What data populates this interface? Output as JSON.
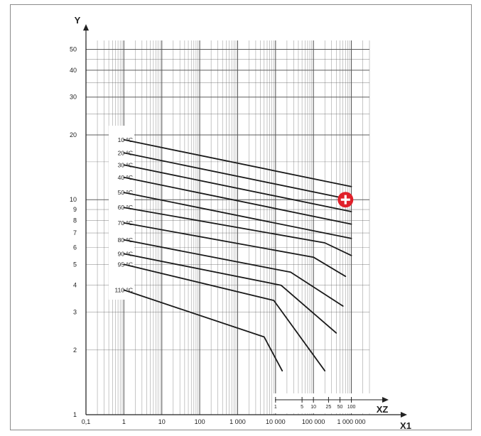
{
  "chart_data": {
    "type": "line",
    "title": "",
    "xlabel": "X1",
    "ylabel": "Y",
    "x2label": "XZ",
    "x_scale": "log",
    "y_scale": "log",
    "xlim": [
      0.1,
      3000000
    ],
    "ylim": [
      1,
      55
    ],
    "grid": true,
    "legend": "none",
    "x_ticks": [
      {
        "value": 0.1,
        "label": "0,1"
      },
      {
        "value": 1,
        "label": "1"
      },
      {
        "value": 10,
        "label": "10"
      },
      {
        "value": 100,
        "label": "100"
      },
      {
        "value": 1000,
        "label": "1 000"
      },
      {
        "value": 10000,
        "label": "10 000"
      },
      {
        "value": 100000,
        "label": "100 000"
      },
      {
        "value": 1000000,
        "label": "1 000 000"
      }
    ],
    "y_ticks": [
      {
        "value": 1,
        "label": "1"
      },
      {
        "value": 2,
        "label": "2"
      },
      {
        "value": 3,
        "label": "3"
      },
      {
        "value": 4,
        "label": "4"
      },
      {
        "value": 5,
        "label": "5"
      },
      {
        "value": 6,
        "label": "6"
      },
      {
        "value": 7,
        "label": "7"
      },
      {
        "value": 8,
        "label": "8"
      },
      {
        "value": 9,
        "label": "9"
      },
      {
        "value": 10,
        "label": "10"
      },
      {
        "value": 20,
        "label": "20"
      },
      {
        "value": 30,
        "label": "30"
      },
      {
        "value": 40,
        "label": "40"
      },
      {
        "value": 50,
        "label": "50"
      }
    ],
    "x2_ticks": [
      {
        "value": 10000,
        "label": "1"
      },
      {
        "value": 50000,
        "label": "5"
      },
      {
        "value": 100000,
        "label": "10"
      },
      {
        "value": 250000,
        "label": "25"
      },
      {
        "value": 500000,
        "label": "50"
      },
      {
        "value": 1000000,
        "label": "100"
      }
    ],
    "series": [
      {
        "name": "10 °C",
        "x": [
          1,
          1000000
        ],
        "y": [
          19,
          11.5
        ]
      },
      {
        "name": "20 °C",
        "x": [
          1,
          1000000
        ],
        "y": [
          16.5,
          10
        ]
      },
      {
        "name": "30 °C",
        "x": [
          1,
          1000000
        ],
        "y": [
          14.5,
          8.8
        ]
      },
      {
        "name": "40 °C",
        "x": [
          1,
          1000000
        ],
        "y": [
          12.7,
          7.7
        ]
      },
      {
        "name": "50 °C",
        "x": [
          1,
          1000000
        ],
        "y": [
          10.8,
          6.6
        ]
      },
      {
        "name": "60 °C",
        "x": [
          1,
          200000,
          1000000
        ],
        "y": [
          9.2,
          6.3,
          5.5
        ]
      },
      {
        "name": "70 °C",
        "x": [
          1,
          100000,
          700000
        ],
        "y": [
          7.8,
          5.4,
          4.4
        ]
      },
      {
        "name": "80 °C",
        "x": [
          1,
          25000,
          600000
        ],
        "y": [
          6.5,
          4.6,
          3.2
        ]
      },
      {
        "name": "90 °C",
        "x": [
          1,
          14000,
          400000
        ],
        "y": [
          5.6,
          4.0,
          2.4
        ]
      },
      {
        "name": "95 °C",
        "x": [
          1,
          9000,
          200000
        ],
        "y": [
          5.0,
          3.4,
          1.6
        ]
      },
      {
        "name": "110 °C",
        "x": [
          1,
          5000,
          15000
        ],
        "y": [
          3.8,
          2.3,
          1.6
        ]
      }
    ],
    "marker": {
      "x": 700000,
      "y": 10,
      "color": "#e0202a"
    },
    "colors": {
      "line": "#1a1a1a",
      "grid": "#555555",
      "marker": "#e0202a"
    }
  }
}
